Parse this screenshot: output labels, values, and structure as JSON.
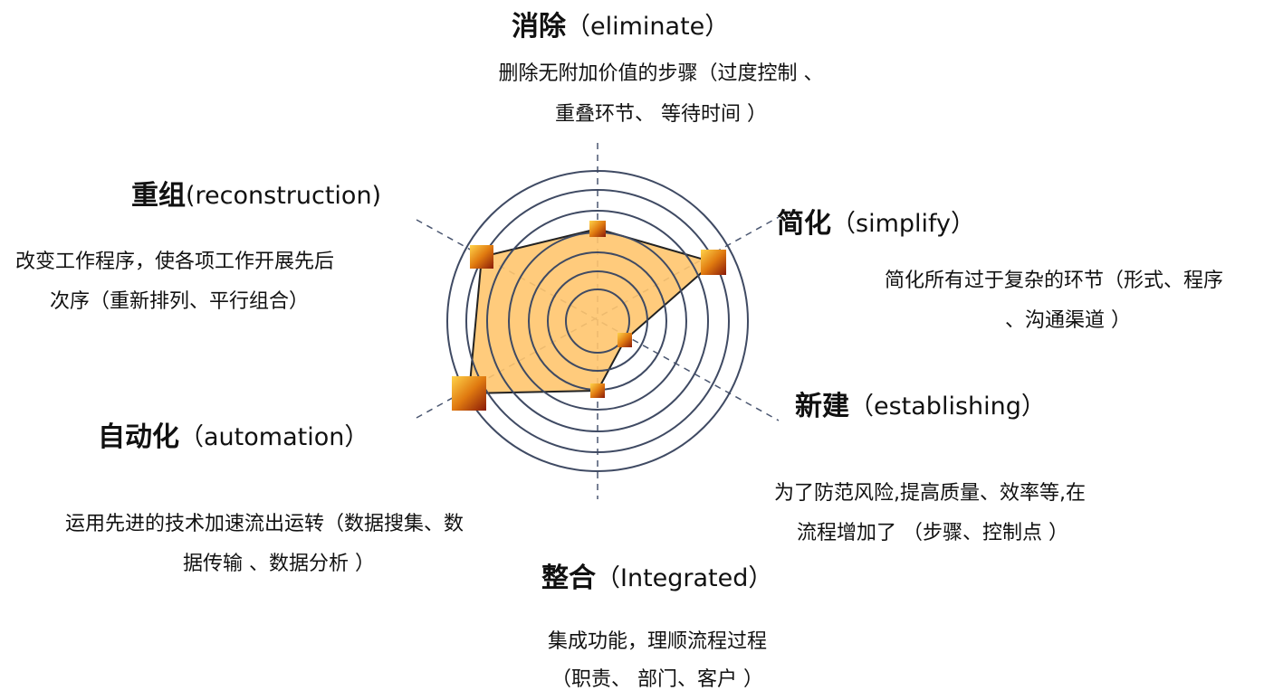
{
  "nodes": [
    {
      "title": "消除",
      "subtitle": "（eliminate）",
      "description": [
        "删除无附加价值的步骤（过度控制 、",
        "重叠环节、 等待时间 ）"
      ]
    },
    {
      "title": "简化",
      "subtitle": "（simplify）",
      "description": [
        "简化所有过于复杂的环节（形式、程序",
        "、沟通渠道 ）"
      ]
    },
    {
      "title": "新建",
      "subtitle": "（establishing）",
      "description": [
        "为了防范风险,提高质量、效率等,在",
        "流程增加了 （步骤、控制点 ）"
      ]
    },
    {
      "title": "整合",
      "subtitle": "（Integrated）",
      "description": [
        "集成功能，理顺流程过程",
        "（职责、 部门、客户 ）"
      ]
    },
    {
      "title": "自动化",
      "subtitle": "（automation）",
      "description": [
        "运用先进的技术加速流出运转（数据搜集、数",
        "据传输 、数据分析 ）"
      ]
    },
    {
      "title": "重组",
      "subtitle": "(reconstruction)",
      "description": [
        "改变工作程序，使各项工作开展先后",
        "次序（重新排列、平行组合）"
      ]
    }
  ]
}
